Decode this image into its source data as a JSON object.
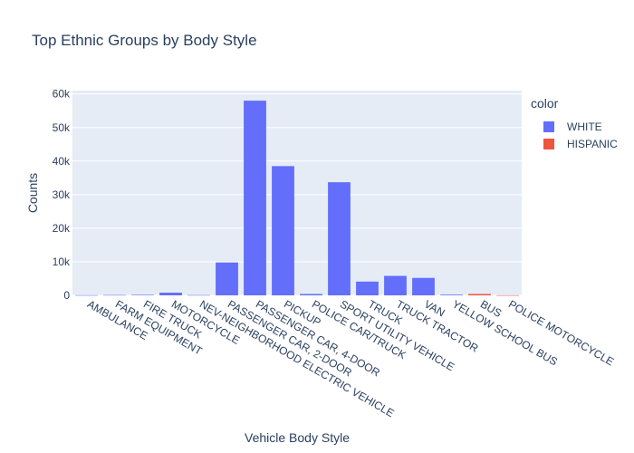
{
  "chart_data": {
    "type": "bar",
    "title": "Top Ethnic Groups by Body Style",
    "xlabel": "Vehicle Body Style",
    "ylabel": "Counts",
    "ylim": [
      0,
      61000
    ],
    "yticks": [
      0,
      10000,
      20000,
      30000,
      40000,
      50000,
      60000
    ],
    "ytick_labels": [
      "0",
      "10k",
      "20k",
      "30k",
      "40k",
      "50k",
      "60k"
    ],
    "grid": true,
    "legend_title": "color",
    "legend_position": "top-right",
    "categories": [
      "AMBULANCE",
      "FARM EQUIPMENT",
      "FIRE TRUCK",
      "MOTORCYCLE",
      "NEV-NEIGHBORHOOD ELECTRIC VEHICLE",
      "PASSENGER CAR, 2-DOOR",
      "PASSENGER CAR, 4-DOOR",
      "PICKUP",
      "POLICE CAR/TRUCK",
      "SPORT UTILITY VEHICLE",
      "TRUCK",
      "TRUCK TRACTOR",
      "VAN",
      "YELLOW SCHOOL BUS",
      "BUS",
      "POLICE MOTORCYCLE"
    ],
    "series": [
      {
        "name": "WHITE",
        "color": "#636efa",
        "values": [
          50,
          100,
          150,
          800,
          80,
          9800,
          58000,
          38500,
          400,
          33700,
          4100,
          5800,
          5200,
          200,
          null,
          null
        ]
      },
      {
        "name": "HISPANIC",
        "color": "#ef553b",
        "values": [
          null,
          null,
          null,
          null,
          null,
          null,
          null,
          null,
          null,
          null,
          null,
          null,
          null,
          null,
          400,
          30
        ]
      }
    ]
  }
}
